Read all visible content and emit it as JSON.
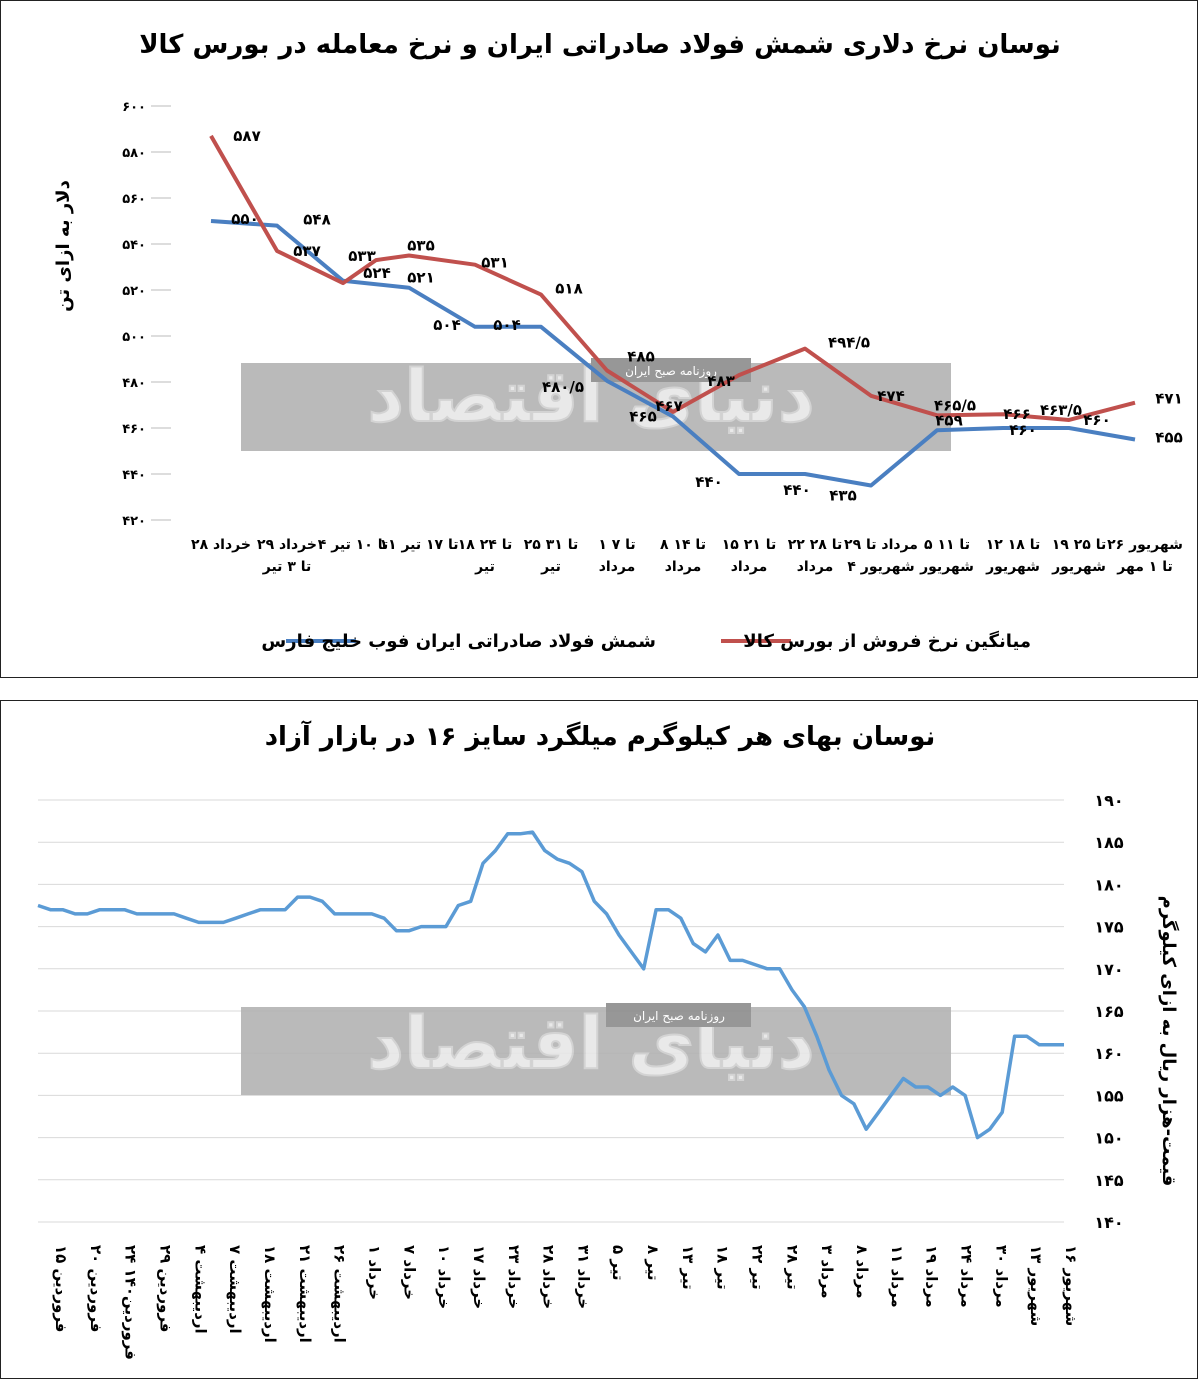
{
  "chart_data": [
    {
      "type": "line",
      "title": "نوسان نرخ دلاری شمش فولاد صادراتی ایران و نرخ معامله در بورس کالا",
      "ylabel": "دلار به ازای تن",
      "ylim": [
        420,
        600
      ],
      "yticks": [
        "۴۲۰",
        "۴۴۰",
        "۴۶۰",
        "۴۸۰",
        "۵۰۰",
        "۵۲۰",
        "۵۴۰",
        "۵۶۰",
        "۵۸۰",
        "۶۰۰"
      ],
      "ytick_values": [
        420,
        440,
        460,
        480,
        500,
        520,
        540,
        560,
        580,
        600
      ],
      "grid": false,
      "legend_position": "bottom",
      "categories": [
        [
          "۲۸ خرداد"
        ],
        [
          "۲۹ خرداد",
          "تا ۳ تیر"
        ],
        [
          "۴ تا ۱۰ تیر"
        ],
        [
          "۱۱ تا ۱۷ تیر"
        ],
        [
          "۱۸ تا ۲۴",
          "تیر"
        ],
        [
          "۲۵ تا ۳۱",
          "تیر"
        ],
        [
          "۱ تا ۷",
          "مرداد"
        ],
        [
          "۸ تا ۱۴",
          "مرداد"
        ],
        [
          "۱۵ تا ۲۱",
          "مرداد"
        ],
        [
          "۲۲ تا ۲۸",
          "مرداد"
        ],
        [
          "۲۹ مرداد تا",
          "۴ شهریور"
        ],
        [
          "۵ تا ۱۱",
          "شهریور"
        ],
        [
          "۱۲ تا ۱۸",
          "شهریور"
        ],
        [
          "۱۹ تا ۲۵",
          "شهریور"
        ],
        [
          "۲۶ شهریور",
          "تا ۱ مهر"
        ]
      ],
      "series": [
        {
          "name": "شمش فولاد صادراتی ایران فوب خلیج فارس",
          "color": "#4a7fc1",
          "x": [
            0,
            1,
            2,
            3,
            4,
            5,
            6,
            7,
            8,
            9,
            10,
            11,
            12,
            13,
            14
          ],
          "values": [
            550,
            548,
            524,
            521,
            504,
            504,
            480.5,
            465,
            440,
            440,
            435,
            459,
            460,
            460,
            455
          ],
          "labels": [
            "۵۵۰",
            "۵۴۸",
            "۵۲۴",
            "۵۲۱",
            "۵۰۴",
            "۵۰۴",
            "۴۸۰/۵",
            "۴۶۵",
            "۴۴۰",
            "۴۴۰",
            "۴۳۵",
            "۴۵۹",
            "۴۶۰",
            "۴۶۰",
            "۴۵۵"
          ]
        },
        {
          "name": "میانگین نرخ فروش از بورس کالا",
          "color": "#c0504d",
          "x": [
            0,
            1,
            2,
            2.5,
            3,
            4,
            5,
            6,
            7,
            8,
            9,
            10,
            11,
            12,
            13,
            14
          ],
          "values": [
            587,
            537,
            523,
            533,
            535,
            531,
            518,
            485,
            467,
            483,
            494.5,
            474,
            465.5,
            466,
            463.5,
            471
          ],
          "labels": [
            "۵۸۷",
            "۵۳۷",
            "",
            "۵۳۳",
            "۵۳۵",
            "۵۳۱",
            "۵۱۸",
            "۴۸۵",
            "۴۶۷",
            "۴۸۳",
            "۴۹۴/۵",
            "۴۷۴",
            "۴۶۵/۵",
            "۴۶۶",
            "۴۶۳/۵",
            "۴۷۱"
          ]
        }
      ]
    },
    {
      "type": "line",
      "title": "نوسان بهای هر کیلوگرم میلگرد سایز ۱۶ در بازار آزاد",
      "ylabel": "قیمت-هزار ریال به ازای کیلوگرم",
      "ylim": [
        140,
        190
      ],
      "yticks": [
        "۱۴۰",
        "۱۴۵",
        "۱۵۰",
        "۱۵۵",
        "۱۶۰",
        "۱۶۵",
        "۱۷۰",
        "۱۷۵",
        "۱۸۰",
        "۱۸۵",
        "۱۹۰"
      ],
      "ytick_values": [
        140,
        145,
        150,
        155,
        160,
        165,
        170,
        175,
        180,
        185,
        190
      ],
      "grid": true,
      "x_labels": [
        "۱۵ فروردین",
        "۲۰ فروردین",
        "۲۴ فروردین۱۴۰",
        "۲۹ فروردین",
        "۴ اردیبهشت",
        "۷ اردیبهشت",
        "۱۸ اردیبهشت",
        "۲۱ اردیبهشت",
        "۲۶ اردیبهشت",
        "۱ خرداد",
        "۷ خرداد",
        "۱۰ خرداد",
        "۱۷ خرداد",
        "۲۳ خرداد",
        "۲۸ خرداد",
        "۳۱ خرداد",
        "۵ تیر",
        "۸ تیر",
        "۱۳ تیر",
        "۱۸ تیر",
        "۲۲ تیر",
        "۲۸ تیر",
        "۳ مرداد",
        "۸ مرداد",
        "۱۱ مرداد",
        "۱۹ مرداد",
        "۲۴ مرداد",
        "۳۰ مرداد",
        "۱۳ شهریور",
        "۱۶ شهریور"
      ],
      "series": [
        {
          "name": "",
          "color": "#5b9bd5",
          "values": [
            177.5,
            177,
            177,
            176.5,
            176.5,
            177,
            177,
            177,
            176.5,
            176.5,
            176.5,
            176.5,
            176,
            175.5,
            175.5,
            175.5,
            176,
            176.5,
            177,
            177,
            177,
            178.5,
            178.5,
            178,
            176.5,
            176.5,
            176.5,
            176.5,
            176,
            174.5,
            174.5,
            175,
            175,
            175,
            177.5,
            178,
            182.5,
            184,
            186,
            186,
            186.2,
            184,
            183,
            182.5,
            181.5,
            178,
            176.5,
            174,
            172,
            170,
            177,
            177,
            176,
            173,
            172,
            174,
            171,
            171,
            170.5,
            170,
            170,
            167.5,
            165.5,
            162,
            158,
            155,
            154,
            151,
            153,
            155,
            157,
            156,
            156,
            155,
            156,
            155,
            150,
            151,
            153,
            162,
            162,
            161,
            161,
            161
          ]
        }
      ]
    }
  ],
  "watermark": {
    "logo_text": "دنیای اقتصاد",
    "sub_text": "روزنامه صبح ایران"
  }
}
